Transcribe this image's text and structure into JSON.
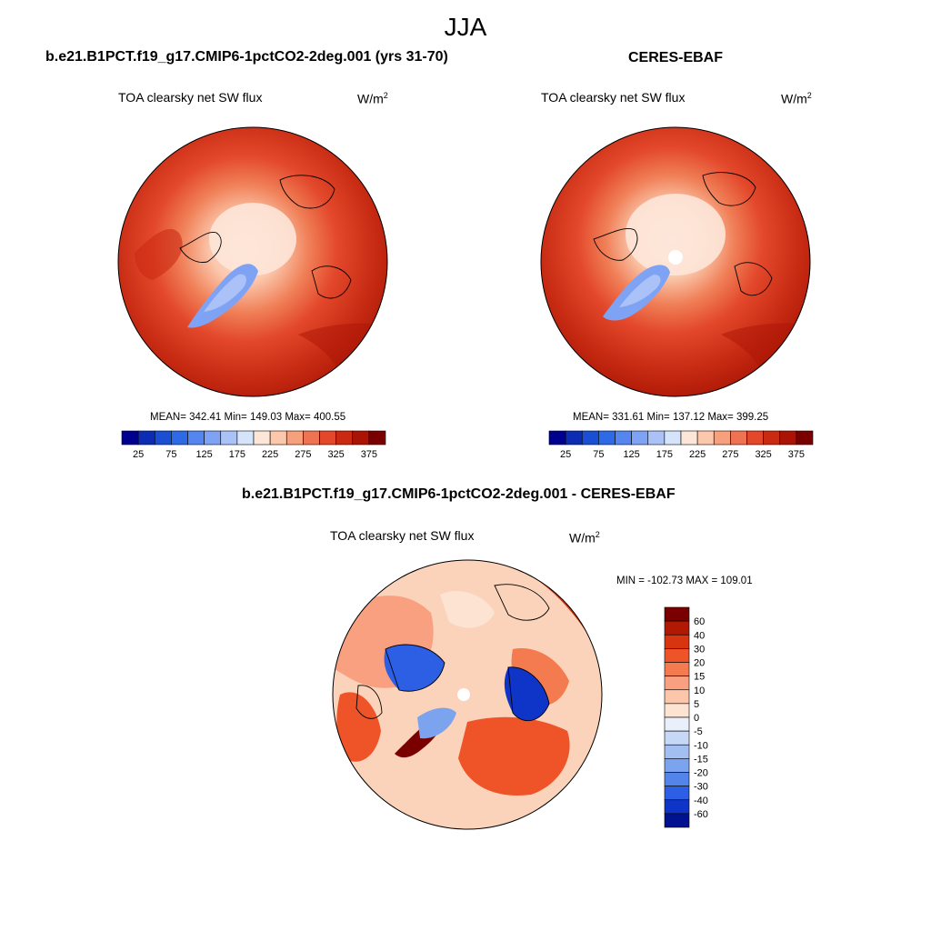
{
  "figure": {
    "season": "JJA"
  },
  "panels": [
    {
      "title": "b.e21.B1PCT.f19_g17.CMIP6-1pctCO2-2deg.001 (yrs 31-70)",
      "variable": "TOA clearsky net SW flux",
      "unit_base": "W/m",
      "unit_exp": "2",
      "stats": "MEAN= 342.41  Min= 149.03  Max= 400.55"
    },
    {
      "title": "CERES-EBAF",
      "variable": "TOA clearsky net SW flux",
      "unit_base": "W/m",
      "unit_exp": "2",
      "stats": "MEAN= 331.61  Min= 137.12  Max= 399.25"
    },
    {
      "title": "b.e21.B1PCT.f19_g17.CMIP6-1pctCO2-2deg.001 - CERES-EBAF",
      "variable": "TOA clearsky net SW flux",
      "unit_base": "W/m",
      "unit_exp": "2",
      "stats": "MIN = -102.73 MAX = 109.01"
    }
  ],
  "chart_data": [
    {
      "type": "heatmap",
      "projection": "polar stereographic (north)",
      "title": "b.e21.B1PCT.f19_g17.CMIP6-1pctCO2-2deg.001 (yrs 31-70)",
      "variable": "TOA clearsky net SW flux",
      "units": "W/m^2",
      "mean": 342.41,
      "min": 149.03,
      "max": 400.55,
      "colorbar": {
        "orientation": "horizontal",
        "levels": [
          25,
          50,
          75,
          100,
          125,
          150,
          175,
          200,
          225,
          250,
          275,
          300,
          325,
          350,
          375
        ],
        "tick_labels": [
          "25",
          "75",
          "125",
          "175",
          "225",
          "275",
          "325",
          "375"
        ],
        "colors": [
          "#00008f",
          "#0c2db3",
          "#1a4fd4",
          "#2f6ae6",
          "#5585ef",
          "#7fa3f4",
          "#aac2f7",
          "#d5e3fb",
          "#fde6d8",
          "#fbc8ad",
          "#f7a07e",
          "#ef7352",
          "#e3482b",
          "#cb2a12",
          "#ab1405",
          "#7a0000"
        ]
      }
    },
    {
      "type": "heatmap",
      "projection": "polar stereographic (north)",
      "title": "CERES-EBAF",
      "variable": "TOA clearsky net SW flux",
      "units": "W/m^2",
      "mean": 331.61,
      "min": 137.12,
      "max": 399.25,
      "colorbar": {
        "orientation": "horizontal",
        "levels": [
          25,
          50,
          75,
          100,
          125,
          150,
          175,
          200,
          225,
          250,
          275,
          300,
          325,
          350,
          375
        ],
        "tick_labels": [
          "25",
          "75",
          "125",
          "175",
          "225",
          "275",
          "325",
          "375"
        ],
        "colors": [
          "#00008f",
          "#0c2db3",
          "#1a4fd4",
          "#2f6ae6",
          "#5585ef",
          "#7fa3f4",
          "#aac2f7",
          "#d5e3fb",
          "#fde6d8",
          "#fbc8ad",
          "#f7a07e",
          "#ef7352",
          "#e3482b",
          "#cb2a12",
          "#ab1405",
          "#7a0000"
        ]
      }
    },
    {
      "type": "heatmap",
      "projection": "polar stereographic (north)",
      "title": "b.e21.B1PCT.f19_g17.CMIP6-1pctCO2-2deg.001 - CERES-EBAF",
      "variable": "TOA clearsky net SW flux",
      "units": "W/m^2",
      "min": -102.73,
      "max": 109.01,
      "colorbar": {
        "orientation": "vertical",
        "levels": [
          -60,
          -40,
          -30,
          -20,
          -15,
          -10,
          -5,
          0,
          5,
          10,
          15,
          20,
          30,
          40,
          60
        ],
        "tick_labels": [
          "60",
          "40",
          "30",
          "20",
          "15",
          "10",
          "5",
          "0",
          "-5",
          "-10",
          "-15",
          "-20",
          "-30",
          "-40",
          "-60"
        ],
        "colors_top_to_bottom": [
          "#7a0000",
          "#b01a05",
          "#d8340f",
          "#ee5428",
          "#f47a4f",
          "#f8a07f",
          "#fbc6a9",
          "#fde3d2",
          "#e9f0fb",
          "#c7d8f7",
          "#a3bff2",
          "#7ca3ee",
          "#5384ea",
          "#2c5fe3",
          "#0f35c8",
          "#00128f"
        ]
      }
    }
  ]
}
